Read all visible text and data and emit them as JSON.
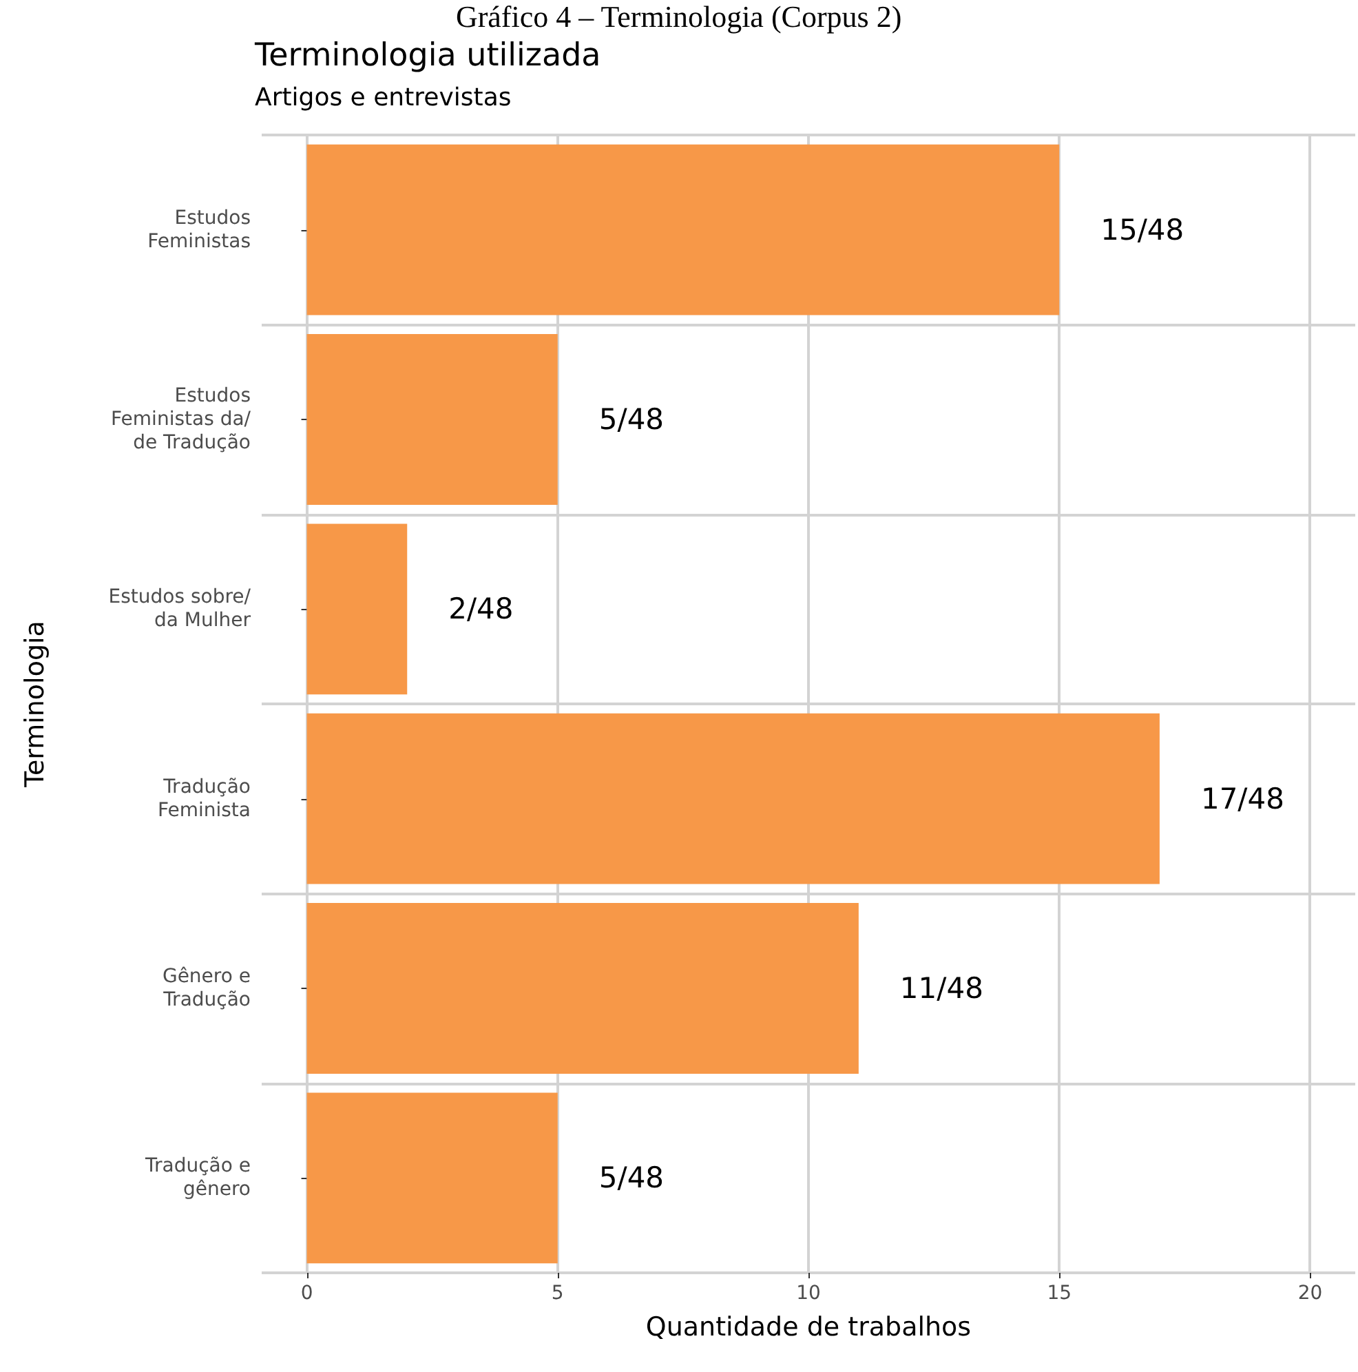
{
  "chart_data": {
    "type": "bar",
    "orientation": "horizontal",
    "title": "Terminologia utilizada",
    "subtitle": "Artigos e entrevistas",
    "xlabel": "Quantidade de trabalhos",
    "ylabel": "Terminologia",
    "annotations": [
      "Gráfico 4 – Terminologia (Corpus 2)"
    ],
    "categories": [
      "Estudos\nFeministas",
      "Estudos\nFeministas da/\nde Tradução",
      "Estudos sobre/\nda Mulher",
      "Tradução\nFeminista",
      "Gênero e\nTradução",
      "Tradução e\ngênero"
    ],
    "values": [
      15,
      5,
      2,
      17,
      11,
      5
    ],
    "value_labels": [
      "15/48",
      "5/48",
      "2/48",
      "17/48",
      "11/48",
      "5/48"
    ],
    "color": "#f79848",
    "xlim": [
      -0.9,
      20.9
    ],
    "xticks": [
      0,
      5,
      10,
      15,
      20
    ],
    "grid": true
  }
}
